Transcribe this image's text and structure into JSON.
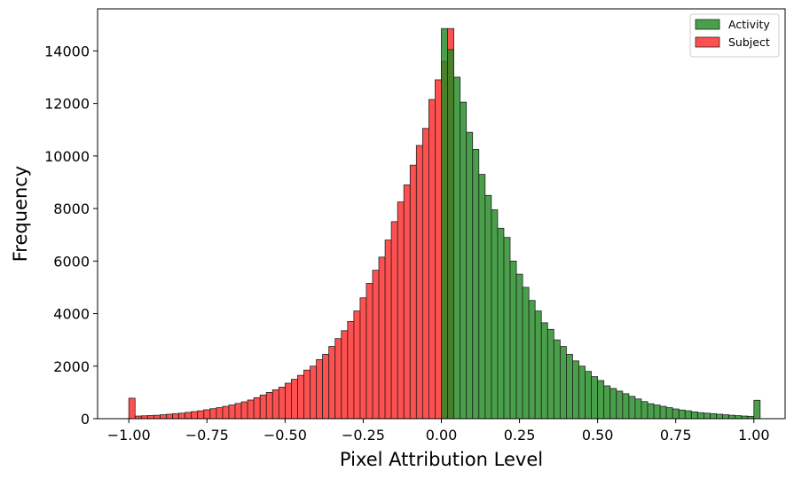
{
  "chart_data": {
    "type": "bar",
    "title": "",
    "xlabel": "Pixel Attribution Level",
    "ylabel": "Frequency",
    "xlim": [
      -1.1,
      1.1
    ],
    "ylim": [
      0,
      15600
    ],
    "x_ticks": [
      "−1.00",
      "−0.75",
      "−0.50",
      "−0.25",
      "0.00",
      "0.25",
      "0.50",
      "0.75",
      "1.00"
    ],
    "x_tick_values": [
      -1.0,
      -0.75,
      -0.5,
      -0.25,
      0.0,
      0.25,
      0.5,
      0.75,
      1.0
    ],
    "y_ticks": [
      "0",
      "2000",
      "4000",
      "6000",
      "8000",
      "10000",
      "12000",
      "14000"
    ],
    "y_tick_values": [
      0,
      2000,
      4000,
      6000,
      8000,
      10000,
      12000,
      14000
    ],
    "bin_width": 0.02,
    "grid": false,
    "legend_placement": "top-right",
    "series": [
      {
        "name": "Activity",
        "color": "#228b22",
        "bin_start": 0.0,
        "values": [
          14850,
          14050,
          13000,
          12050,
          10900,
          10250,
          9300,
          8500,
          7950,
          7250,
          6900,
          6000,
          5500,
          5000,
          4500,
          4100,
          3650,
          3400,
          3000,
          2750,
          2450,
          2200,
          2000,
          1800,
          1600,
          1450,
          1250,
          1150,
          1050,
          950,
          850,
          750,
          650,
          570,
          520,
          470,
          420,
          370,
          330,
          300,
          260,
          230,
          210,
          190,
          170,
          150,
          130,
          115,
          100,
          90,
          700
        ]
      },
      {
        "name": "Subject",
        "color": "#ff2a2a",
        "bin_start": -1.0,
        "values": [
          780,
          100,
          110,
          120,
          130,
          150,
          170,
          190,
          210,
          240,
          270,
          300,
          340,
          380,
          420,
          470,
          520,
          580,
          640,
          710,
          800,
          900,
          1000,
          1100,
          1200,
          1350,
          1500,
          1650,
          1850,
          2000,
          2250,
          2450,
          2750,
          3050,
          3350,
          3700,
          4100,
          4600,
          5150,
          5650,
          6150,
          6800,
          7500,
          8250,
          8900,
          9650,
          10400,
          11050,
          12150,
          12900,
          13600,
          14850
        ]
      }
    ]
  }
}
